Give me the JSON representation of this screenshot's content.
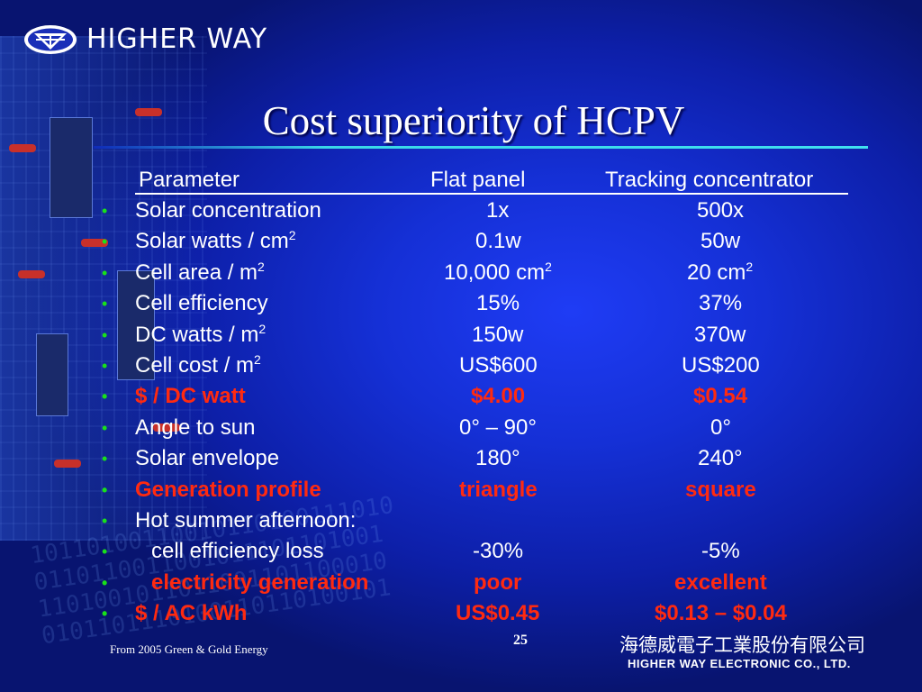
{
  "logo": {
    "text": "HIGHER WAY",
    "icon": "higher-way-logo-icon"
  },
  "title": "Cost superiority of HCPV",
  "table": {
    "headers": [
      "Parameter",
      "Flat panel",
      "Tracking concentrator"
    ],
    "rows": [
      {
        "param": "Solar concentration",
        "flat": "1x",
        "tracking": "500x",
        "highlight": false
      },
      {
        "param": "Solar watts / cm",
        "param_sup": "2",
        "flat": "0.1w",
        "tracking": "50w",
        "highlight": false
      },
      {
        "param": "Cell area / m",
        "param_sup": "2",
        "flat": "10,000 cm",
        "flat_sup": "2",
        "tracking": "20 cm",
        "tracking_sup": "2",
        "highlight": false
      },
      {
        "param": "Cell efficiency",
        "flat": "15%",
        "tracking": "37%",
        "highlight": false
      },
      {
        "param": "DC watts / m",
        "param_sup": "2",
        "flat": "150w",
        "tracking": "370w",
        "highlight": false
      },
      {
        "param": "Cell cost / m",
        "param_sup": "2",
        "flat": "US$600",
        "tracking": "US$200",
        "highlight": false
      },
      {
        "param": "$ / DC watt",
        "flat": "$4.00",
        "tracking": "$0.54",
        "highlight": true
      },
      {
        "param": "Angle to sun",
        "flat": "0° – 90°",
        "tracking": "0°",
        "highlight": false
      },
      {
        "param": "Solar envelope",
        "flat": "180°",
        "tracking": "240°",
        "highlight": false
      },
      {
        "param": "Generation profile",
        "flat": "triangle",
        "tracking": "square",
        "highlight": true
      },
      {
        "param": "Hot summer afternoon:",
        "flat": "",
        "tracking": "",
        "highlight": false
      },
      {
        "param": "cell efficiency loss",
        "flat": "-30%",
        "tracking": "-5%",
        "highlight": false,
        "indent": true
      },
      {
        "param": "electricity generation",
        "flat": "poor",
        "tracking": "excellent",
        "highlight": true,
        "indent": true
      },
      {
        "param": "$ / AC kWh",
        "flat": "US$0.45",
        "tracking": "$0.13 – $0.04",
        "highlight": true
      }
    ]
  },
  "footer": {
    "source": "From 2005 Green & Gold Energy",
    "page_number": "25",
    "company_cn": "海德威電子工業股份有限公司",
    "company_en": "HIGHER WAY ELECTRONIC CO., LTD."
  },
  "colors": {
    "bullet": "#19e01b",
    "highlight": "#ff2a10",
    "background": "#1530d6"
  }
}
